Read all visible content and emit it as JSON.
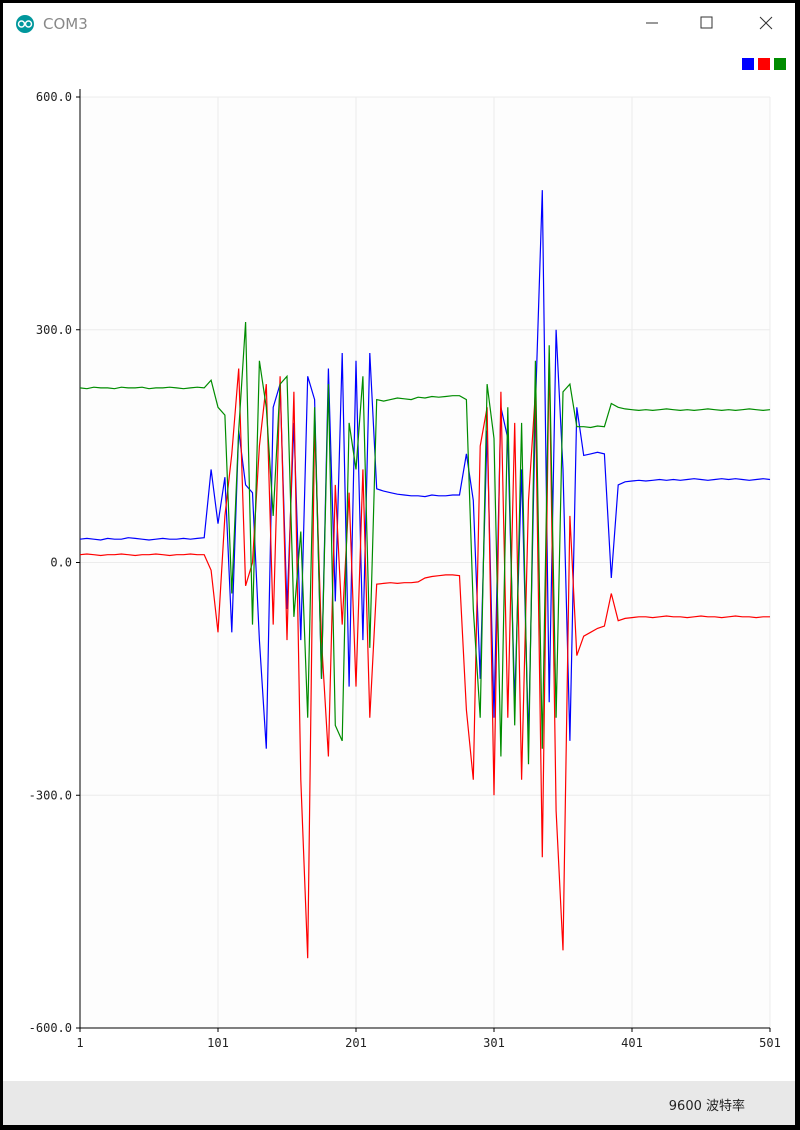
{
  "window": {
    "title": "COM3"
  },
  "chart_data": {
    "type": "line",
    "x": [
      1,
      6,
      11,
      16,
      21,
      26,
      31,
      36,
      41,
      46,
      51,
      56,
      61,
      66,
      71,
      76,
      81,
      86,
      91,
      96,
      101,
      106,
      111,
      116,
      121,
      126,
      131,
      136,
      141,
      146,
      151,
      156,
      161,
      166,
      171,
      176,
      181,
      186,
      191,
      196,
      201,
      206,
      211,
      216,
      221,
      226,
      231,
      236,
      241,
      246,
      251,
      256,
      261,
      266,
      271,
      276,
      281,
      286,
      291,
      296,
      301,
      306,
      311,
      316,
      321,
      326,
      331,
      336,
      341,
      346,
      351,
      356,
      361,
      366,
      371,
      376,
      381,
      386,
      391,
      396,
      401,
      406,
      411,
      416,
      421,
      426,
      431,
      436,
      441,
      446,
      451,
      456,
      461,
      466,
      471,
      476,
      481,
      486,
      491,
      496,
      501
    ],
    "series": [
      {
        "color": "#0000ff",
        "values": [
          30,
          31,
          30,
          29,
          31,
          30,
          30,
          32,
          31,
          30,
          29,
          30,
          31,
          30,
          30,
          31,
          30,
          31,
          32,
          120,
          50,
          110,
          -90,
          170,
          100,
          90,
          -100,
          -240,
          200,
          230,
          -60,
          180,
          -100,
          240,
          210,
          -150,
          250,
          -50,
          270,
          -160,
          260,
          -100,
          270,
          95,
          92,
          90,
          88,
          87,
          86,
          86,
          85,
          87,
          86,
          86,
          87,
          87,
          140,
          80,
          -150,
          170,
          -200,
          200,
          160,
          -180,
          120,
          -230,
          200,
          480,
          -180,
          300,
          120,
          -230,
          200,
          138,
          140,
          142,
          140,
          -20,
          100,
          104,
          105,
          106,
          105,
          106,
          107,
          106,
          107,
          106,
          107,
          108,
          107,
          106,
          107,
          108,
          107,
          108,
          107,
          106,
          107,
          108,
          107
        ]
      },
      {
        "color": "#ff0000",
        "values": [
          10,
          11,
          10,
          9,
          10,
          10,
          11,
          10,
          9,
          10,
          10,
          11,
          10,
          9,
          10,
          10,
          11,
          10,
          10,
          -10,
          -90,
          60,
          140,
          250,
          -30,
          0,
          150,
          230,
          -80,
          240,
          -100,
          220,
          -280,
          -510,
          180,
          -100,
          -250,
          100,
          -80,
          90,
          -160,
          120,
          -200,
          -28,
          -27,
          -26,
          -27,
          -26,
          -26,
          -25,
          -20,
          -18,
          -17,
          -16,
          -16,
          -17,
          -190,
          -280,
          150,
          200,
          -300,
          220,
          -200,
          180,
          -280,
          80,
          220,
          -380,
          270,
          -320,
          -500,
          60,
          -120,
          -95,
          -90,
          -85,
          -82,
          -40,
          -75,
          -72,
          -71,
          -70,
          -70,
          -71,
          -70,
          -69,
          -70,
          -70,
          -71,
          -70,
          -69,
          -70,
          -70,
          -71,
          -70,
          -69,
          -70,
          -70,
          -71,
          -70,
          -70
        ]
      },
      {
        "color": "#008c00",
        "values": [
          225,
          224,
          226,
          225,
          225,
          224,
          226,
          225,
          225,
          226,
          224,
          225,
          225,
          226,
          225,
          224,
          225,
          226,
          225,
          235,
          200,
          190,
          -40,
          170,
          310,
          -80,
          260,
          200,
          60,
          230,
          240,
          -70,
          40,
          -200,
          200,
          -150,
          230,
          -210,
          -230,
          180,
          120,
          240,
          -110,
          210,
          208,
          210,
          212,
          211,
          210,
          213,
          212,
          214,
          213,
          214,
          215,
          215,
          210,
          -60,
          -200,
          230,
          160,
          -250,
          200,
          -210,
          180,
          -260,
          260,
          -240,
          280,
          -200,
          220,
          230,
          175,
          175,
          174,
          176,
          175,
          205,
          200,
          198,
          197,
          196,
          197,
          196,
          197,
          198,
          197,
          196,
          197,
          196,
          197,
          198,
          197,
          196,
          197,
          196,
          197,
          198,
          197,
          196,
          197
        ]
      }
    ],
    "xlim": [
      1,
      501
    ],
    "xticks": [
      1,
      101,
      201,
      301,
      401,
      501
    ],
    "ylim": [
      -600,
      600
    ],
    "yticks": [
      {
        "value": -600,
        "label": "-600.0"
      },
      {
        "value": -300,
        "label": "-300.0"
      },
      {
        "value": 0,
        "label": "0.0"
      },
      {
        "value": 300,
        "label": "300.0"
      },
      {
        "value": 600,
        "label": "600.0"
      }
    ],
    "grid": true,
    "legend": "top-right"
  },
  "footer": {
    "baud": "9600 波特率"
  }
}
